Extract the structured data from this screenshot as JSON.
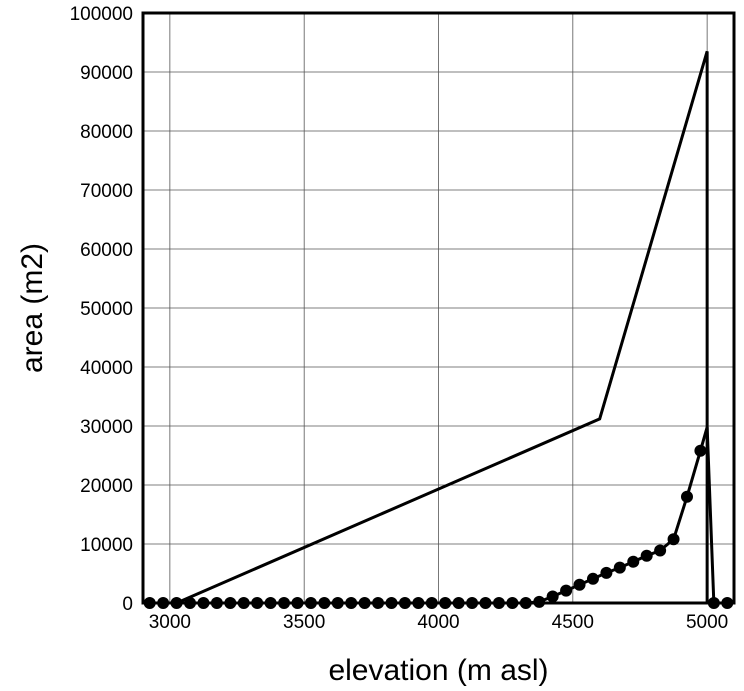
{
  "chart_data": {
    "type": "line",
    "title": "",
    "xlabel": "elevation (m asl)",
    "ylabel": "area (m2)",
    "xlim": [
      2900,
      5100
    ],
    "ylim": [
      0,
      100000
    ],
    "xticks": [
      3000,
      3500,
      4000,
      4500,
      5000
    ],
    "yticks": [
      0,
      10000,
      20000,
      30000,
      40000,
      50000,
      60000,
      70000,
      80000,
      90000,
      100000
    ],
    "grid": true,
    "legend": "none",
    "series": [
      {
        "style": "line",
        "x": [
          3025,
          4600,
          5000,
          5000
        ],
        "y": [
          0,
          31200,
          93500,
          0
        ]
      },
      {
        "style": "line-with-markers",
        "x": [
          2925,
          2975,
          3025,
          3075,
          3125,
          3175,
          3225,
          3275,
          3325,
          3375,
          3425,
          3475,
          3525,
          3575,
          3625,
          3675,
          3725,
          3775,
          3825,
          3875,
          3925,
          3975,
          4025,
          4075,
          4125,
          4175,
          4225,
          4275,
          4325,
          4375,
          4425,
          4475,
          4525,
          4575,
          4625,
          4675,
          4725,
          4775,
          4825,
          4875,
          4925,
          4975,
          5000,
          5025,
          5075
        ],
        "y": [
          0,
          0,
          0,
          0,
          0,
          0,
          0,
          0,
          0,
          0,
          0,
          0,
          0,
          0,
          0,
          0,
          0,
          0,
          0,
          0,
          0,
          0,
          0,
          0,
          0,
          0,
          0,
          0,
          0,
          200,
          1100,
          2100,
          3100,
          4100,
          5100,
          6000,
          7000,
          8000,
          8900,
          10800,
          18000,
          25800,
          29800,
          0,
          0
        ],
        "markers": [
          true,
          true,
          true,
          true,
          true,
          true,
          true,
          true,
          true,
          true,
          true,
          true,
          true,
          true,
          true,
          true,
          true,
          true,
          true,
          true,
          true,
          true,
          true,
          true,
          true,
          true,
          true,
          true,
          true,
          true,
          true,
          true,
          true,
          true,
          true,
          true,
          true,
          true,
          true,
          true,
          true,
          true,
          false,
          true,
          true
        ]
      }
    ]
  }
}
